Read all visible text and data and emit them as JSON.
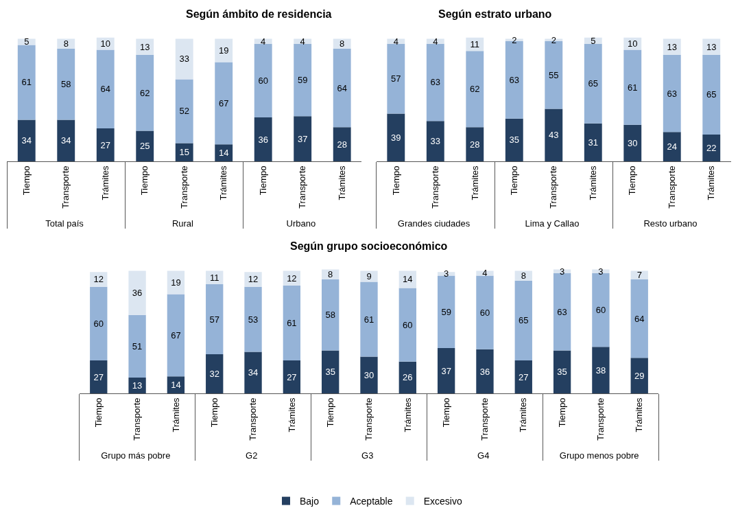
{
  "chart_data": [
    {
      "type": "bar",
      "stacked": true,
      "data_labels": true,
      "title": "Según ámbito de residencia",
      "categories": [
        "Tiempo",
        "Transporte",
        "Trámites",
        "Tiempo",
        "Transporte",
        "Trámites",
        "Tiempo",
        "Transporte",
        "Trámites"
      ],
      "annotations": [
        "Total país",
        "Rural",
        "Urbano"
      ],
      "series": [
        {
          "color": "#243f60",
          "values": [
            34,
            34,
            27,
            25,
            15,
            14,
            36,
            37,
            28
          ]
        },
        {
          "color": "#95b3d7",
          "values": [
            61,
            58,
            64,
            62,
            52,
            67,
            60,
            59,
            64
          ]
        },
        {
          "color": "#dce6f1",
          "values": [
            5,
            8,
            10,
            13,
            33,
            19,
            4,
            4,
            8
          ]
        }
      ]
    },
    {
      "type": "bar",
      "stacked": true,
      "data_labels": true,
      "title": "Según estrato urbano",
      "categories": [
        "Tiempo",
        "Transporte",
        "Trámites",
        "Tiempo",
        "Transporte",
        "Trámites",
        "Tiempo",
        "Transporte",
        "Trámites"
      ],
      "annotations": [
        "Grandes ciudades",
        "Lima y Callao",
        "Resto urbano"
      ],
      "series": [
        {
          "color": "#243f60",
          "values": [
            39,
            33,
            28,
            35,
            43,
            31,
            30,
            24,
            22
          ]
        },
        {
          "color": "#95b3d7",
          "values": [
            57,
            63,
            62,
            63,
            55,
            65,
            61,
            63,
            65
          ]
        },
        {
          "color": "#dce6f1",
          "values": [
            4,
            4,
            11,
            2,
            2,
            5,
            10,
            13,
            13
          ]
        }
      ]
    },
    {
      "type": "bar",
      "stacked": true,
      "data_labels": true,
      "legend": "bottom",
      "title": "Según grupo socioeconómico",
      "categories": [
        "Tiempo",
        "Transporte",
        "Trámites",
        "Tiempo",
        "Transporte",
        "Trámites",
        "Tiempo",
        "Transporte",
        "Trámites",
        "Tiempo",
        "Transporte",
        "Trámites",
        "Tiempo",
        "Transporte",
        "Trámites"
      ],
      "annotations": [
        "Grupo más pobre",
        "G2",
        "G3",
        "G4",
        "Grupo menos pobre"
      ],
      "series": [
        {
          "name": "Bajo",
          "color": "#243f60",
          "values": [
            27,
            13,
            14,
            32,
            34,
            27,
            35,
            30,
            26,
            37,
            36,
            27,
            35,
            38,
            29
          ]
        },
        {
          "name": "Aceptable",
          "color": "#95b3d7",
          "values": [
            60,
            51,
            67,
            57,
            53,
            61,
            58,
            61,
            60,
            59,
            60,
            65,
            63,
            60,
            64
          ]
        },
        {
          "name": "Excesivo",
          "color": "#dce6f1",
          "values": [
            12,
            36,
            19,
            11,
            12,
            12,
            8,
            9,
            14,
            3,
            4,
            8,
            3,
            3,
            7
          ]
        }
      ]
    }
  ]
}
